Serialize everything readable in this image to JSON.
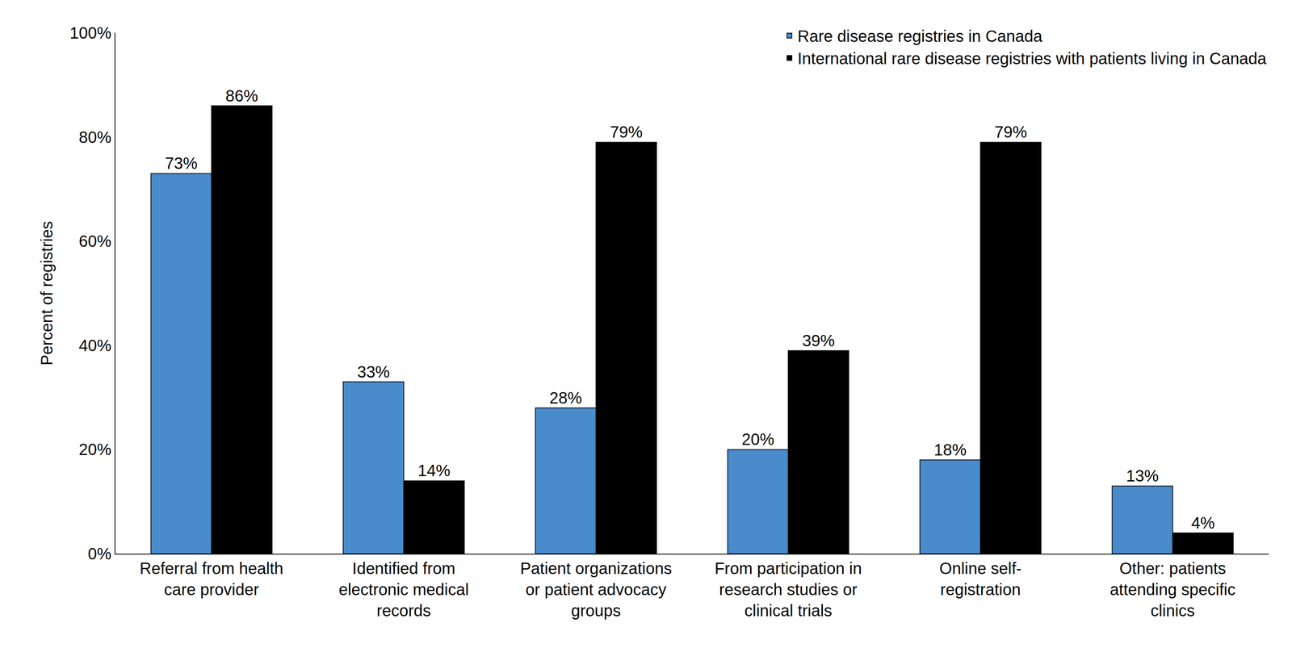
{
  "chart_data": {
    "type": "bar",
    "categories": [
      "Referral from health care provider",
      "Identified from electronic medical records",
      "Patient organizations or patient advocacy groups",
      "From participation in research studies or clinical trials",
      "Online self-registration",
      "Other: patients attending specific clinics"
    ],
    "series": [
      {
        "name": "Rare disease registries in Canada",
        "color": "#4a8bcb",
        "values": [
          73,
          33,
          28,
          20,
          18,
          13
        ],
        "value_labels": [
          "73%",
          "33%",
          "28%",
          "20%",
          "18%",
          "13%"
        ]
      },
      {
        "name": "International rare disease registries with patients living in Canada",
        "color": "#000000",
        "values": [
          86,
          14,
          79,
          39,
          79,
          4
        ],
        "value_labels": [
          "86%",
          "14%",
          "79%",
          "39%",
          "79%",
          "4%"
        ]
      }
    ],
    "y_label": "Percent of registries",
    "ylim": [
      0,
      100
    ],
    "yticks": [
      {
        "value": 0,
        "label": "0%"
      },
      {
        "value": 20,
        "label": "20%"
      },
      {
        "value": 40,
        "label": "40%"
      },
      {
        "value": 60,
        "label": "60%"
      },
      {
        "value": 80,
        "label": "80%"
      },
      {
        "value": 100,
        "label": "100%"
      }
    ],
    "grid": false,
    "legend": "top right",
    "data_labels": true
  }
}
